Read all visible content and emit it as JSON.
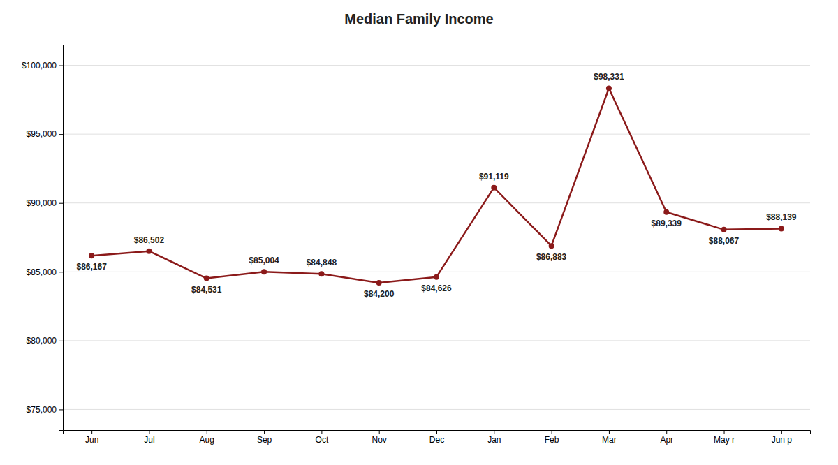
{
  "chart_data": {
    "type": "line",
    "title": "Median Family Income",
    "categories": [
      "Jun",
      "Jul",
      "Aug",
      "Sep",
      "Oct",
      "Nov",
      "Dec",
      "Jan",
      "Feb",
      "Mar",
      "Apr",
      "May r",
      "Jun p"
    ],
    "values": [
      86167,
      86502,
      84531,
      85004,
      84848,
      84200,
      84626,
      91119,
      86883,
      98331,
      89339,
      88067,
      88139
    ],
    "value_labels": [
      "$86,167",
      "$86,502",
      "$84,531",
      "$85,004",
      "$84,848",
      "$84,200",
      "$84,626",
      "$91,119",
      "$86,883",
      "$98,331",
      "$89,339",
      "$88,067",
      "$88,139"
    ],
    "data_labels": true,
    "color": "#8B1A1A",
    "marker": "circle",
    "ylim": [
      73500,
      101500
    ],
    "yticks": [
      {
        "value": 75000,
        "label": "$75,000"
      },
      {
        "value": 80000,
        "label": "$80,000"
      },
      {
        "value": 85000,
        "label": "$85,000"
      },
      {
        "value": 90000,
        "label": "$90,000"
      },
      {
        "value": 95000,
        "label": "$95,000"
      },
      {
        "value": 100000,
        "label": "$100,000"
      }
    ],
    "grid": true
  }
}
